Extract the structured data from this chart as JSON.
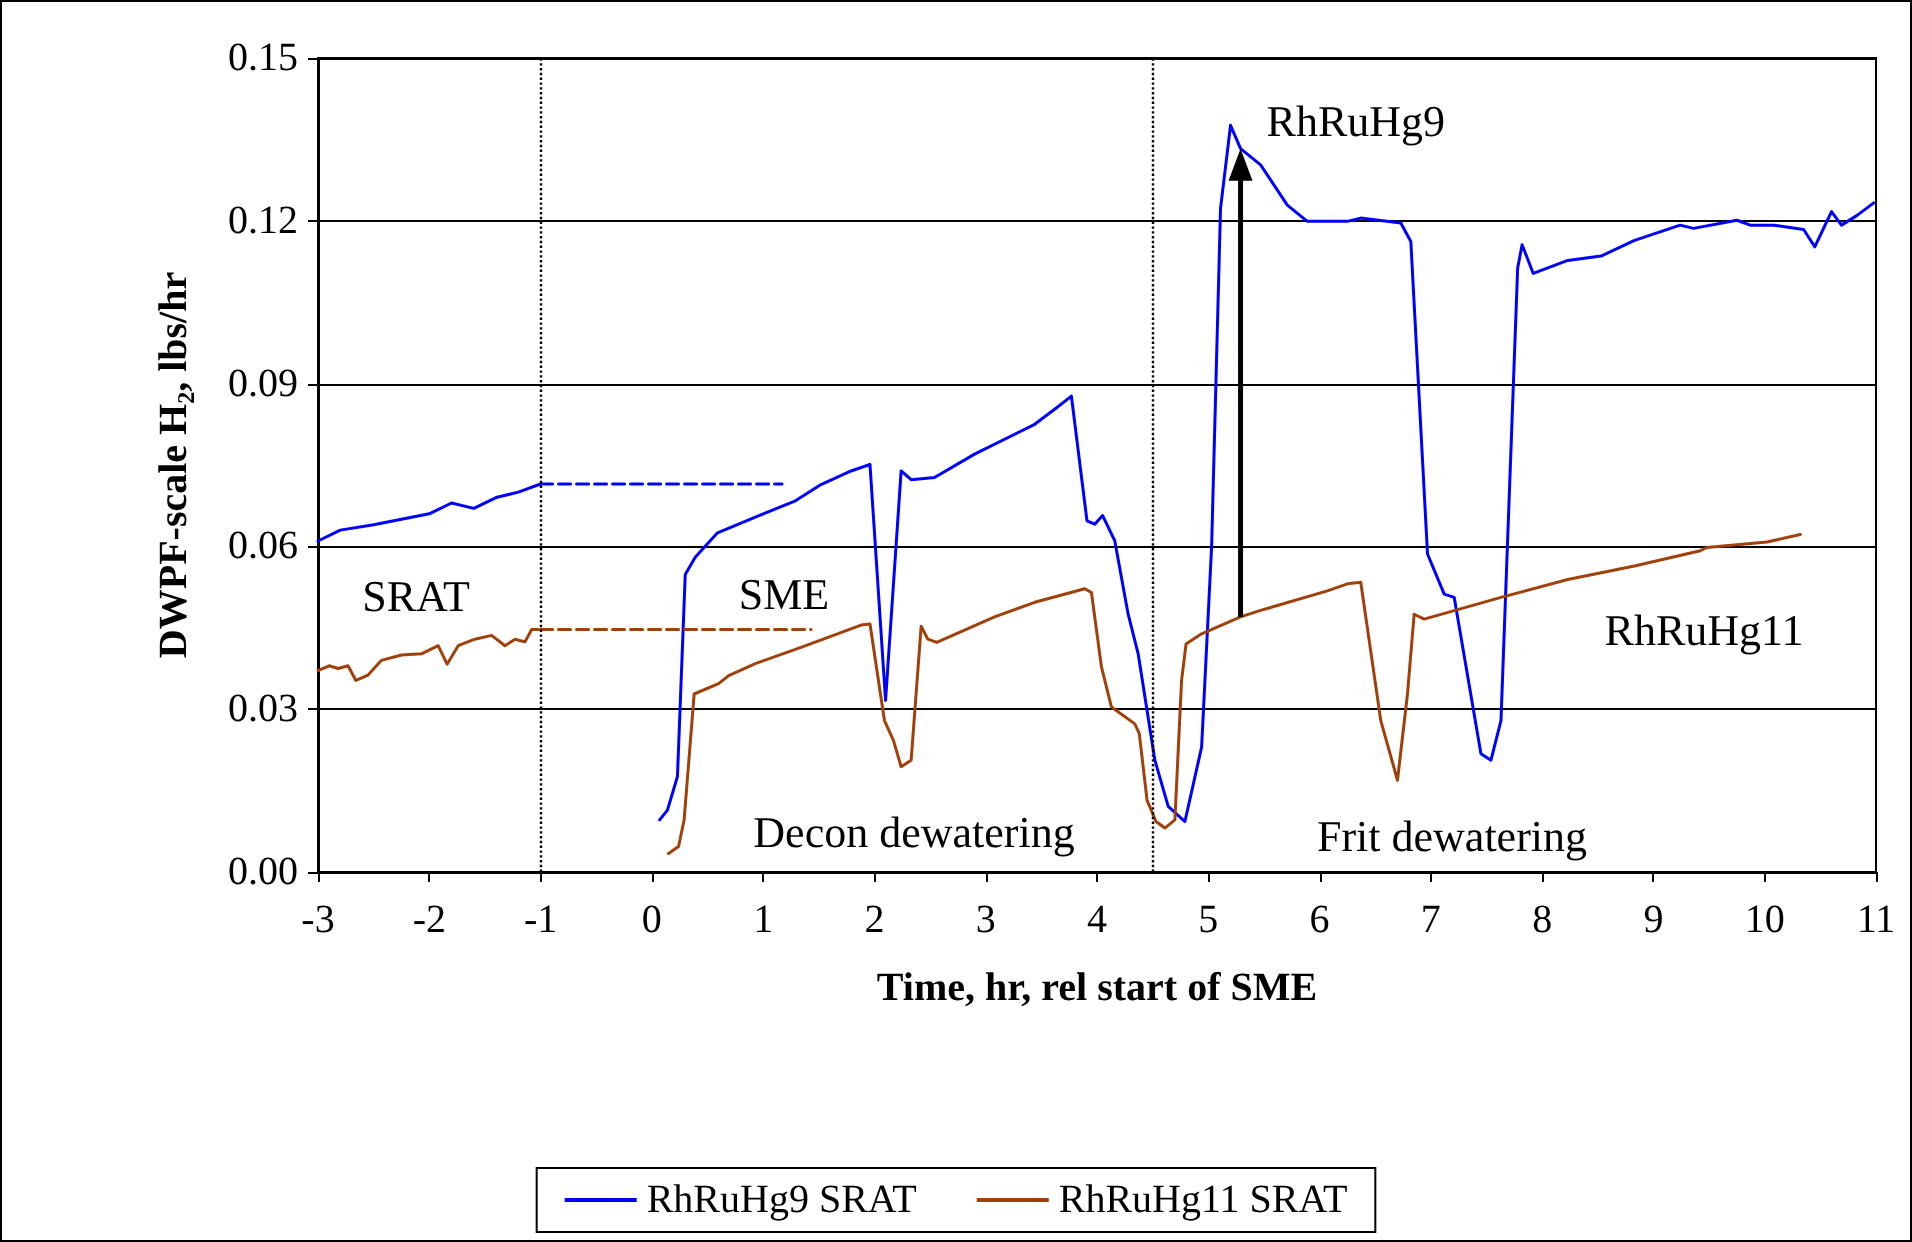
{
  "chart_data": {
    "type": "line",
    "xlabel": "Time, hr, rel start of SME",
    "ylabel": "DWPF-scale H₂, lbs/hr",
    "xlim": [
      -3,
      11
    ],
    "xticks": [
      -3,
      -2,
      -1,
      0,
      1,
      2,
      3,
      4,
      5,
      6,
      7,
      8,
      9,
      10,
      11
    ],
    "ylim": [
      0,
      0.15
    ],
    "yticks": [
      {
        "value": 0,
        "label": "0.00"
      },
      {
        "value": 0.03,
        "label": "0.03"
      },
      {
        "value": 0.06,
        "label": "0.06"
      },
      {
        "value": 0.09,
        "label": "0.09"
      },
      {
        "value": 0.12,
        "label": "0.12"
      },
      {
        "value": 0.15,
        "label": "0.15"
      }
    ],
    "grid": "y",
    "legend": "bottom",
    "marker": "none",
    "line_style": "solid",
    "series": [
      {
        "name": "RhRuHg9 SRAT",
        "color": "#0000ff",
        "x": [
          -3,
          -2.8,
          -2.5,
          -2,
          -1.8,
          -1.6,
          -1.4,
          -1.2,
          -1,
          null,
          0.07,
          0.14,
          0.23,
          0.3,
          0.39,
          0.59,
          0.93,
          1.29,
          1.52,
          1.79,
          1.96,
          2.1,
          2.24,
          2.33,
          2.54,
          2.9,
          3.44,
          3.64,
          3.77,
          3.91,
          3.98,
          4.05,
          4.16,
          4.28,
          4.37,
          4.52,
          4.64,
          4.79,
          4.94,
          5.03,
          5.11,
          5.2,
          5.29,
          5.47,
          5.71,
          5.89,
          6.25,
          6.37,
          6.73,
          6.82,
          6.97,
          7.12,
          7.21,
          7.45,
          7.54,
          7.63,
          7.78,
          7.82,
          7.92,
          8.23,
          8.53,
          8.83,
          9.24,
          9.36,
          9.75,
          9.87,
          10.08,
          10.35,
          10.45,
          10.6,
          10.69,
          10.83,
          10.98
        ],
        "values": [
          0.061,
          0.063,
          0.064,
          0.066,
          0.068,
          0.067,
          0.069,
          0.07,
          0.0715,
          null,
          0.0096,
          0.0114,
          0.0176,
          0.0548,
          0.058,
          0.0625,
          0.0654,
          0.0684,
          0.0714,
          0.0739,
          0.0751,
          0.0316,
          0.0739,
          0.0723,
          0.0727,
          0.077,
          0.0825,
          0.0856,
          0.0877,
          0.0647,
          0.0641,
          0.0657,
          0.061,
          0.0475,
          0.0402,
          0.0206,
          0.0121,
          0.0093,
          0.023,
          0.06,
          0.1223,
          0.1376,
          0.1333,
          0.1303,
          0.1229,
          0.1199,
          0.1199,
          0.1205,
          0.1196,
          0.1162,
          0.0586,
          0.0512,
          0.0506,
          0.0218,
          0.0206,
          0.0279,
          0.1113,
          0.1156,
          0.1103,
          0.1127,
          0.1135,
          0.1164,
          0.1192,
          0.1186,
          0.1201,
          0.1192,
          0.1192,
          0.1184,
          0.1152,
          0.1217,
          0.1192,
          0.121,
          0.1233
        ]
      },
      {
        "name": "RhRuHg11 SRAT",
        "color": "#a0400a",
        "x": [
          -3,
          -2.9,
          -2.82,
          -2.73,
          -2.66,
          -2.55,
          -2.43,
          -2.25,
          -2.07,
          -1.92,
          -1.84,
          -1.74,
          -1.59,
          -1.44,
          -1.32,
          -1.23,
          -1.14,
          -1.08,
          -1.02,
          null,
          0.15,
          0.24,
          0.29,
          0.38,
          0.6,
          0.69,
          0.93,
          1.34,
          1.88,
          1.96,
          2.09,
          2.17,
          2.24,
          2.33,
          2.42,
          2.48,
          2.56,
          3.08,
          3.44,
          3.89,
          3.95,
          4.04,
          4.13,
          4.34,
          4.38,
          4.45,
          4.53,
          4.61,
          4.7,
          4.76,
          4.8,
          4.94,
          5.29,
          5.47,
          6.07,
          6.25,
          6.37,
          6.55,
          6.7,
          6.79,
          6.85,
          6.94,
          7.63,
          8.23,
          8.83,
          9.42,
          9.48,
          10.02,
          10.32
        ],
        "values": [
          0.0371,
          0.038,
          0.0375,
          0.038,
          0.0353,
          0.0363,
          0.039,
          0.04,
          0.0402,
          0.0417,
          0.0383,
          0.0417,
          0.0429,
          0.0436,
          0.0417,
          0.0429,
          0.0424,
          0.0447,
          0.0447,
          null,
          0.0034,
          0.0047,
          0.0096,
          0.0328,
          0.0347,
          0.0362,
          0.0384,
          0.0414,
          0.0455,
          0.0457,
          0.0279,
          0.0243,
          0.0194,
          0.0206,
          0.0453,
          0.0429,
          0.0423,
          0.047,
          0.0497,
          0.0522,
          0.0515,
          0.0378,
          0.0304,
          0.0273,
          0.0255,
          0.0132,
          0.0093,
          0.0081,
          0.0096,
          0.0353,
          0.042,
          0.0439,
          0.047,
          0.0482,
          0.0518,
          0.0531,
          0.0534,
          0.0279,
          0.0169,
          0.0328,
          0.0475,
          0.0466,
          0.0506,
          0.0539,
          0.0564,
          0.0592,
          0.0598,
          0.0608,
          0.0622
        ]
      },
      {
        "color": "#0000ff",
        "line_style": "dashed",
        "x": [
          -1,
          1.17
        ],
        "values": [
          0.0715,
          0.0715
        ]
      },
      {
        "color": "#a0400a",
        "line_style": "dashed",
        "x": [
          -1,
          1.43
        ],
        "values": [
          0.0447,
          0.0447
        ]
      }
    ],
    "ref_lines": [
      {
        "axis": "x",
        "value": -1,
        "color": "#000000",
        "line_style": "dotted"
      },
      {
        "axis": "x",
        "value": 4.5,
        "color": "#000000",
        "line_style": "dotted"
      }
    ],
    "annotations": [
      "SRAT",
      "SME",
      "Decon dewatering",
      "Frit dewatering",
      "RhRuHg11",
      {
        "text": "RhRuHg9",
        "x": 5.29,
        "y": 0.1333
      }
    ]
  }
}
